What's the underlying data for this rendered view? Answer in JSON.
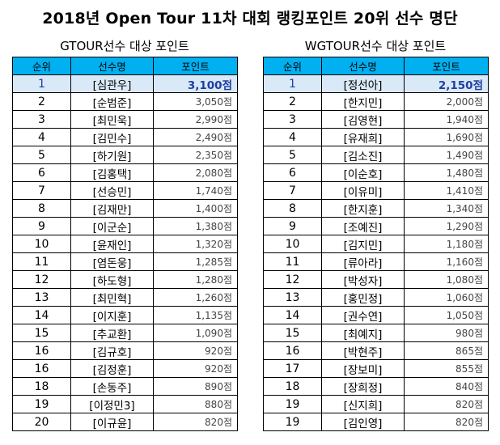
{
  "title": "2018년 Open Tour 11차 대회 랭킹포인트 20위 선수 명단",
  "headers": {
    "rank": "순위",
    "player": "선수명",
    "points": "포인트"
  },
  "colors": {
    "header_bg": "#00b0f0",
    "first_row_bg": "#d9e9f7",
    "first_row_text": "#1f3fa0"
  },
  "gtour": {
    "title": "GTOUR선수 대상 포인트",
    "rows": [
      {
        "rank": "1",
        "name": "[심관우]",
        "points": "3,100점"
      },
      {
        "rank": "2",
        "name": "[순범준]",
        "points": "3,050점"
      },
      {
        "rank": "3",
        "name": "[최민욱]",
        "points": "2,990점"
      },
      {
        "rank": "4",
        "name": "[김민수]",
        "points": "2,490점"
      },
      {
        "rank": "5",
        "name": "[하기원]",
        "points": "2,350점"
      },
      {
        "rank": "6",
        "name": "[김홍택]",
        "points": "2,080점"
      },
      {
        "rank": "7",
        "name": "[선승민]",
        "points": "1,740점"
      },
      {
        "rank": "8",
        "name": "[김재만]",
        "points": "1,400점"
      },
      {
        "rank": "9",
        "name": "[이군순]",
        "points": "1,380점"
      },
      {
        "rank": "10",
        "name": "[윤재인]",
        "points": "1,320점"
      },
      {
        "rank": "11",
        "name": "[염돈웅]",
        "points": "1,285점"
      },
      {
        "rank": "12",
        "name": "[하도형]",
        "points": "1,280점"
      },
      {
        "rank": "13",
        "name": "[최민혁]",
        "points": "1,260점"
      },
      {
        "rank": "14",
        "name": "[이지훈]",
        "points": "1,135점"
      },
      {
        "rank": "15",
        "name": "[추교환]",
        "points": "1,090점"
      },
      {
        "rank": "16",
        "name": "[김규호]",
        "points": "920점"
      },
      {
        "rank": "16",
        "name": "[김정훈]",
        "points": "920점"
      },
      {
        "rank": "18",
        "name": "[손동주]",
        "points": "890점"
      },
      {
        "rank": "19",
        "name": "[이정민3]",
        "points": "880점"
      },
      {
        "rank": "20",
        "name": "[이규윤]",
        "points": "820점"
      }
    ]
  },
  "wgtour": {
    "title": "WGTOUR선수 대상 포인트",
    "rows": [
      {
        "rank": "1",
        "name": "[정선아]",
        "points": "2,150점"
      },
      {
        "rank": "2",
        "name": "[한지민]",
        "points": "2,000점"
      },
      {
        "rank": "3",
        "name": "[김영현]",
        "points": "1,940점"
      },
      {
        "rank": "4",
        "name": "[유재희]",
        "points": "1,690점"
      },
      {
        "rank": "5",
        "name": "[김소진]",
        "points": "1,490점"
      },
      {
        "rank": "6",
        "name": "[이순호]",
        "points": "1,480점"
      },
      {
        "rank": "7",
        "name": "[이유미]",
        "points": "1,410점"
      },
      {
        "rank": "8",
        "name": "[한지훈]",
        "points": "1,340점"
      },
      {
        "rank": "9",
        "name": "[조예진]",
        "points": "1,290점"
      },
      {
        "rank": "10",
        "name": "[김지민]",
        "points": "1,180점"
      },
      {
        "rank": "11",
        "name": "[류아라]",
        "points": "1,160점"
      },
      {
        "rank": "12",
        "name": "[박성자]",
        "points": "1,080점"
      },
      {
        "rank": "13",
        "name": "[홍민정]",
        "points": "1,060점"
      },
      {
        "rank": "14",
        "name": "[권수연]",
        "points": "1,050점"
      },
      {
        "rank": "15",
        "name": "[최예지]",
        "points": "980점"
      },
      {
        "rank": "16",
        "name": "[박현주]",
        "points": "865점"
      },
      {
        "rank": "17",
        "name": "[장보미]",
        "points": "855점"
      },
      {
        "rank": "18",
        "name": "[장희정]",
        "points": "840점"
      },
      {
        "rank": "19",
        "name": "[신지희]",
        "points": "820점"
      },
      {
        "rank": "19",
        "name": "[김인영]",
        "points": "820점"
      }
    ]
  }
}
